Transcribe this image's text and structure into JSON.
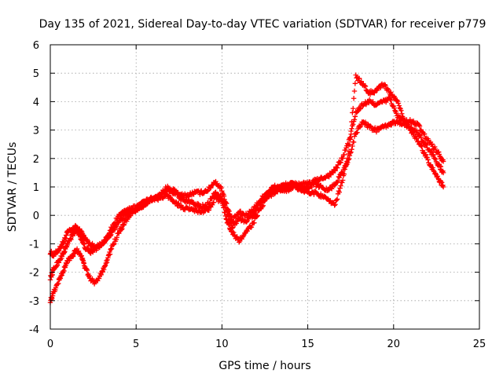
{
  "chart_data": {
    "type": "scatter",
    "title": "Day 135 of 2021, Sidereal Day-to-day VTEC variation (SDTVAR) for receiver p779",
    "xlabel": "GPS time / hours",
    "ylabel": "SDTVAR / TECUs",
    "xlim": [
      0,
      25
    ],
    "ylim": [
      -4,
      6
    ],
    "x_ticks": [
      0,
      5,
      10,
      15,
      20,
      25
    ],
    "y_ticks": [
      -4,
      -3,
      -2,
      -1,
      0,
      1,
      2,
      3,
      4,
      5,
      6
    ],
    "grid": true,
    "marker": "+",
    "series": [
      {
        "name": "trace-1",
        "color": "#ff0000",
        "x": [
          0.0,
          0.2,
          0.5,
          0.8,
          1.0,
          1.3,
          1.5,
          1.8,
          2.0,
          2.3,
          2.6,
          3.0,
          3.3,
          3.6,
          4.0,
          4.3,
          4.6,
          5.0,
          5.3,
          5.6,
          6.0,
          6.4,
          6.8,
          7.2,
          7.6,
          8.0,
          8.4,
          8.8,
          9.2,
          9.6,
          10.0,
          10.3,
          10.6,
          11.0,
          11.4,
          11.8,
          12.2,
          12.6,
          13.0,
          13.4,
          13.8,
          14.2,
          14.6,
          15.0,
          15.4,
          15.8,
          16.2,
          16.6,
          17.0,
          17.4,
          17.8,
          18.2,
          18.6,
          19.0,
          19.4,
          19.8,
          20.2,
          20.6,
          21.0,
          21.4,
          21.8,
          22.2,
          22.6,
          22.9
        ],
        "y": [
          -1.3,
          -1.4,
          -1.2,
          -0.9,
          -0.6,
          -0.5,
          -0.4,
          -0.6,
          -0.8,
          -1.0,
          -1.1,
          -1.0,
          -0.8,
          -0.6,
          -0.2,
          0.0,
          0.1,
          0.2,
          0.3,
          0.4,
          0.6,
          0.7,
          0.9,
          0.8,
          0.7,
          0.7,
          0.8,
          0.8,
          0.9,
          1.2,
          0.9,
          0.3,
          -0.2,
          0.1,
          0.0,
          0.2,
          0.5,
          0.8,
          1.0,
          1.0,
          1.1,
          1.1,
          1.1,
          1.1,
          1.2,
          1.3,
          1.4,
          1.6,
          2.0,
          2.6,
          3.6,
          3.9,
          4.0,
          3.9,
          4.0,
          4.1,
          3.5,
          3.3,
          3.3,
          3.2,
          2.8,
          2.5,
          2.2,
          1.9
        ]
      },
      {
        "name": "trace-2",
        "color": "#ff0000",
        "x": [
          0.0,
          0.2,
          0.5,
          0.8,
          1.0,
          1.3,
          1.5,
          1.8,
          2.0,
          2.3,
          2.6,
          3.0,
          3.3,
          3.6,
          4.0,
          4.3,
          4.6,
          5.0,
          5.3,
          5.6,
          6.0,
          6.4,
          6.8,
          7.2,
          7.6,
          8.0,
          8.4,
          8.8,
          9.2,
          9.6,
          10.0,
          10.3,
          10.6,
          11.0,
          11.4,
          11.8,
          12.2,
          12.6,
          13.0,
          13.4,
          13.8,
          14.2,
          14.6,
          15.0,
          15.4,
          15.8,
          16.2,
          16.6,
          17.0,
          17.4,
          17.8,
          18.2,
          18.6,
          19.0,
          19.4,
          19.8,
          20.2,
          20.6,
          21.0,
          21.4,
          21.8,
          22.2,
          22.6,
          22.9
        ],
        "y": [
          -2.2,
          -1.9,
          -1.6,
          -1.3,
          -1.0,
          -0.7,
          -0.5,
          -0.8,
          -1.1,
          -1.3,
          -1.2,
          -1.0,
          -0.8,
          -0.4,
          0.0,
          0.1,
          0.2,
          0.3,
          0.4,
          0.5,
          0.6,
          0.7,
          1.0,
          0.9,
          0.6,
          0.5,
          0.4,
          0.3,
          0.4,
          0.8,
          0.6,
          0.1,
          -0.4,
          -0.1,
          -0.2,
          0.0,
          0.4,
          0.7,
          0.9,
          1.0,
          1.0,
          1.1,
          1.0,
          1.0,
          1.1,
          1.0,
          0.9,
          1.1,
          1.5,
          2.0,
          2.9,
          3.3,
          3.1,
          3.0,
          3.1,
          3.2,
          3.3,
          3.2,
          3.1,
          2.9,
          2.5,
          2.2,
          1.8,
          1.5
        ]
      },
      {
        "name": "trace-3",
        "color": "#ff0000",
        "x": [
          0.0,
          0.2,
          0.5,
          0.8,
          1.0,
          1.3,
          1.5,
          1.8,
          2.0,
          2.3,
          2.6,
          3.0,
          3.3,
          3.6,
          4.0,
          4.3,
          4.6,
          5.0,
          5.3,
          5.6,
          6.0,
          6.4,
          6.8,
          7.2,
          7.6,
          8.0,
          8.4,
          8.8,
          9.2,
          9.6,
          10.0,
          10.3,
          10.6,
          11.0,
          11.4,
          11.8,
          12.2,
          12.6,
          13.0,
          13.4,
          13.8,
          14.2,
          14.6,
          15.0,
          15.4,
          15.8,
          16.2,
          16.6,
          17.0,
          17.4,
          17.8,
          18.2,
          18.6,
          19.0,
          19.4,
          19.8,
          20.2,
          20.6,
          21.0,
          21.4,
          21.8,
          22.2,
          22.6,
          22.9
        ],
        "y": [
          -3.0,
          -2.7,
          -2.3,
          -1.9,
          -1.6,
          -1.4,
          -1.2,
          -1.4,
          -1.8,
          -2.2,
          -2.4,
          -2.0,
          -1.6,
          -1.1,
          -0.6,
          -0.3,
          0.0,
          0.2,
          0.4,
          0.5,
          0.6,
          0.6,
          0.7,
          0.5,
          0.3,
          0.2,
          0.2,
          0.1,
          0.2,
          0.6,
          0.5,
          -0.2,
          -0.6,
          -0.9,
          -0.6,
          -0.3,
          0.2,
          0.6,
          0.8,
          0.9,
          0.9,
          1.0,
          0.9,
          0.8,
          0.8,
          0.7,
          0.5,
          0.4,
          1.2,
          2.2,
          4.9,
          4.6,
          4.3,
          4.4,
          4.6,
          4.3,
          4.0,
          3.4,
          3.0,
          2.6,
          2.2,
          1.7,
          1.3,
          1.0
        ]
      }
    ]
  }
}
